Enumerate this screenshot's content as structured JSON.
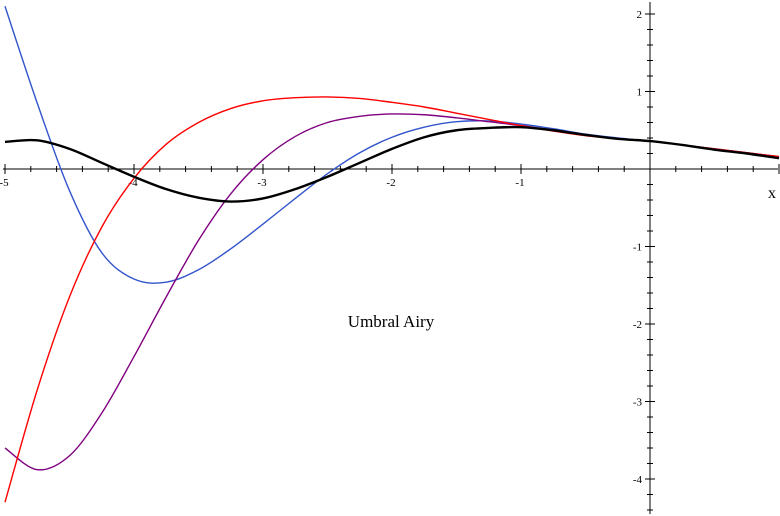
{
  "chart_data": {
    "type": "line",
    "title": "",
    "xlabel": "x",
    "ylabel": "",
    "xlim": [
      -5,
      1
    ],
    "ylim": [
      -4.5,
      2.2
    ],
    "annotation": "Umbral Airy",
    "x_ticks": [
      -5,
      -4,
      -3,
      -2,
      -1
    ],
    "x_tick_labels": [
      "-5",
      "-4",
      "-3",
      "-2",
      "-1"
    ],
    "y_ticks": [
      2,
      1,
      -1,
      -2,
      -3,
      -4
    ],
    "y_tick_labels": [
      "2",
      "1",
      "-1",
      "-2",
      "-3",
      "-4"
    ],
    "grid": false,
    "legend": "none",
    "x": [
      -5,
      -4.75,
      -4.5,
      -4.25,
      -4,
      -3.75,
      -3.5,
      -3.25,
      -3,
      -2.75,
      -2.5,
      -2.25,
      -2,
      -1.75,
      -1.5,
      -1.25,
      -1,
      -0.75,
      -0.5,
      -0.25,
      0,
      0.25,
      0.5,
      0.75,
      1
    ],
    "series": [
      {
        "color": "#000000",
        "stroke_width": 2.4,
        "values": [
          0.35,
          0.37,
          0.26,
          0.08,
          -0.1,
          -0.26,
          -0.37,
          -0.42,
          -0.38,
          -0.26,
          -0.1,
          0.08,
          0.26,
          0.41,
          0.5,
          0.53,
          0.54,
          0.5,
          0.44,
          0.39,
          0.36,
          0.31,
          0.25,
          0.2,
          0.14
        ]
      },
      {
        "color": "#ff0000",
        "stroke_width": 1.4,
        "values": [
          -4.3,
          -2.85,
          -1.65,
          -0.75,
          -0.12,
          0.32,
          0.6,
          0.78,
          0.88,
          0.92,
          0.93,
          0.91,
          0.86,
          0.8,
          0.72,
          0.64,
          0.56,
          0.49,
          0.43,
          0.39,
          0.36,
          0.31,
          0.26,
          0.21,
          0.16
        ]
      },
      {
        "color": "#3355cc",
        "stroke_width": 1.4,
        "values": [
          2.1,
          0.85,
          -0.28,
          -1.08,
          -1.42,
          -1.46,
          -1.3,
          -1.03,
          -0.71,
          -0.38,
          -0.06,
          0.21,
          0.41,
          0.54,
          0.61,
          0.62,
          0.58,
          0.52,
          0.45,
          0.4,
          0.36,
          0.31,
          0.25,
          0.2,
          0.15
        ]
      },
      {
        "color": "#800080",
        "stroke_width": 1.4,
        "values": [
          -3.6,
          -3.88,
          -3.7,
          -3.15,
          -2.42,
          -1.65,
          -0.92,
          -0.32,
          0.12,
          0.42,
          0.6,
          0.68,
          0.71,
          0.7,
          0.66,
          0.61,
          0.56,
          0.5,
          0.44,
          0.39,
          0.36,
          0.31,
          0.26,
          0.21,
          0.16
        ]
      }
    ]
  }
}
